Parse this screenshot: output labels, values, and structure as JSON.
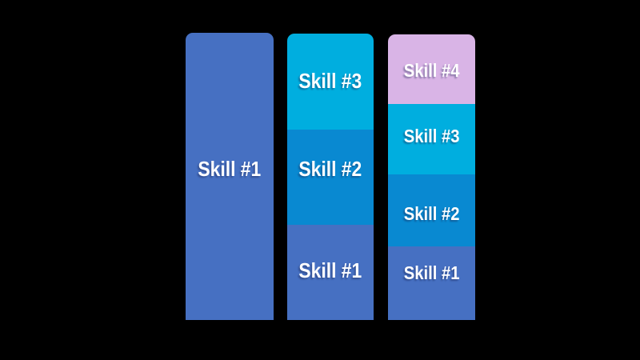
{
  "canvas": {
    "background": "#000000",
    "label_text_color": "#ffffff"
  },
  "colors": {
    "skill_1": "#4670c2",
    "skill_2": "#0989d1",
    "skill_3": "#00aedf",
    "skill_4": "#d9b4e6"
  },
  "bars": [
    {
      "name": "bar-1",
      "segments": [
        {
          "label": "Skill #1",
          "color": "#4670c2"
        }
      ]
    },
    {
      "name": "bar-2",
      "segments": [
        {
          "label": "Skill #3",
          "color": "#00aedf"
        },
        {
          "label": "Skill #2",
          "color": "#0989d1"
        },
        {
          "label": "Skill #1",
          "color": "#4670c2"
        }
      ]
    },
    {
      "name": "bar-3",
      "segments": [
        {
          "label": "Skill #4",
          "color": "#d9b4e6"
        },
        {
          "label": "Skill #3",
          "color": "#00aedf"
        },
        {
          "label": "Skill #2",
          "color": "#0989d1"
        },
        {
          "label": "Skill #1",
          "color": "#4670c2"
        }
      ]
    }
  ],
  "chart_data": {
    "type": "bar",
    "variant": "stacked-vertical-infographic",
    "title": "",
    "xlabel": "",
    "ylabel": "",
    "axes": "none",
    "legend": "none",
    "grid": false,
    "categories": [
      "bar-1",
      "bar-2",
      "bar-3"
    ],
    "value_unit": "segment height in px (read from image, bars bottom-aligned at same baseline)",
    "series": [
      {
        "name": "Skill #1",
        "color": "#4670c2",
        "values": [
          359,
          119,
          92
        ]
      },
      {
        "name": "Skill #2",
        "color": "#0989d1",
        "values": [
          0,
          119,
          90
        ]
      },
      {
        "name": "Skill #3",
        "color": "#00aedf",
        "values": [
          0,
          120,
          88
        ]
      },
      {
        "name": "Skill #4",
        "color": "#d9b4e6",
        "values": [
          0,
          0,
          87
        ]
      }
    ],
    "segment_order_rendered": "top-to-bottom: highest skill number on top, Skill #1 at bottom",
    "bar_label_style": "bold white condensed text centered inside each segment"
  }
}
